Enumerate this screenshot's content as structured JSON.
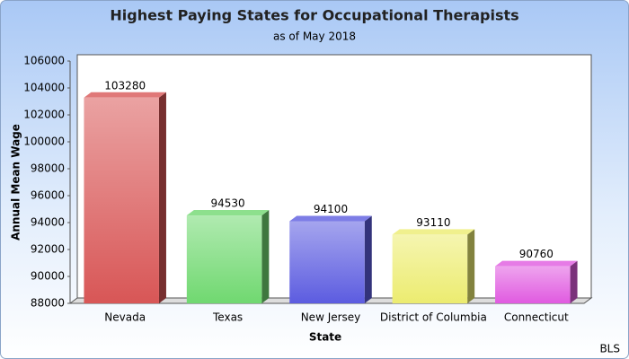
{
  "chart_data": {
    "type": "bar3d",
    "title": "Highest Paying States for Occupational Therapists",
    "subtitle": "as of May 2018",
    "categories": [
      "Nevada",
      "Texas",
      "New Jersey",
      "District of Columbia",
      "Connecticut"
    ],
    "values": [
      103280,
      94530,
      94100,
      93110,
      90760
    ],
    "colors": [
      "#d85656",
      "#70d870",
      "#5c5ce0",
      "#ecec70",
      "#e05ae0"
    ],
    "xlabel": "State",
    "ylabel": "Annual Mean Wage",
    "ylim": [
      88000,
      106000
    ],
    "yticks": [
      88000,
      90000,
      92000,
      94000,
      96000,
      98000,
      100000,
      102000,
      104000,
      106000
    ],
    "source": "BLS"
  }
}
